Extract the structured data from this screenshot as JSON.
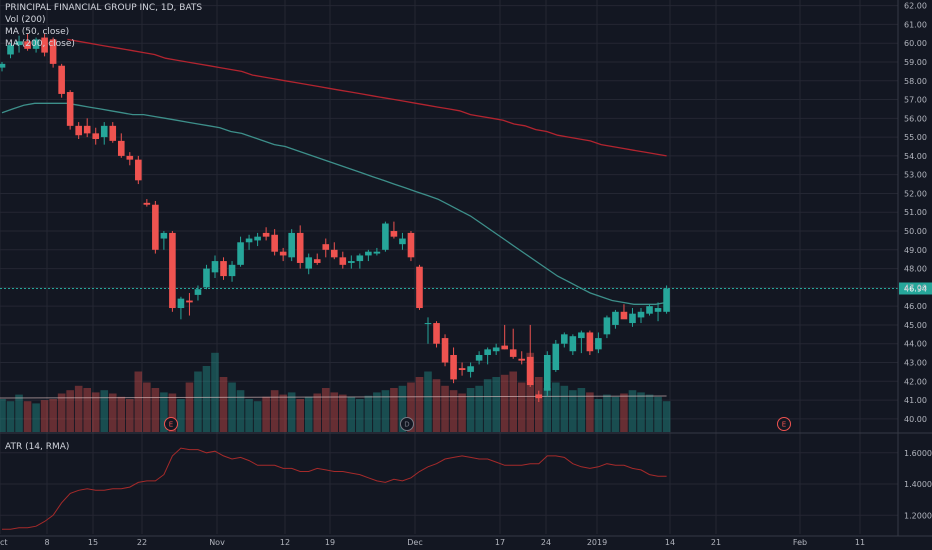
{
  "legend": {
    "title": "PRINCIPAL FINANCIAL GROUP INC, 1D, BATS",
    "vol": "Vol (200)",
    "ma50": "MA (50, close)",
    "ma200": "MA (200, close)",
    "atr": "ATR (14, RMA)"
  },
  "colors": {
    "up": "#26a69a",
    "down": "#ef5350",
    "ma50": "#3d8f8a",
    "ma200": "#b2242f",
    "atr": "#a52a2a",
    "last_price_line": "#26a69a",
    "grid": "#242733",
    "background": "#131722"
  },
  "chart_data": {
    "type": "candlestick",
    "title": "PRINCIPAL FINANCIAL GROUP INC, 1D, BATS",
    "price_axis": {
      "ylim": [
        39.3,
        62.3
      ],
      "ticks": [
        "62.00",
        "61.00",
        "60.00",
        "59.00",
        "58.00",
        "57.00",
        "56.00",
        "55.00",
        "54.00",
        "53.00",
        "52.00",
        "51.00",
        "50.00",
        "49.00",
        "48.00",
        "47.00",
        "46.00",
        "45.00",
        "44.00",
        "43.00",
        "42.00",
        "41.00",
        "40.00"
      ]
    },
    "last_price": "46.94",
    "x_tick_labels": [
      "ct",
      "8",
      "15",
      "22",
      "Nov",
      "12",
      "19",
      "Dec",
      "17",
      "24",
      "2019",
      "14",
      "21",
      "Feb",
      "11"
    ],
    "candles": [
      {
        "o": 58.7,
        "h": 59.0,
        "l": 58.5,
        "c": 58.9
      },
      {
        "o": 59.4,
        "h": 60.0,
        "l": 59.2,
        "c": 59.9
      },
      {
        "o": 59.9,
        "h": 60.4,
        "l": 59.5,
        "c": 60.1
      },
      {
        "o": 60.1,
        "h": 60.5,
        "l": 59.6,
        "c": 59.7
      },
      {
        "o": 59.7,
        "h": 60.3,
        "l": 59.5,
        "c": 60.2
      },
      {
        "o": 60.3,
        "h": 60.5,
        "l": 59.3,
        "c": 59.5
      },
      {
        "o": 60.2,
        "h": 60.3,
        "l": 58.7,
        "c": 58.9
      },
      {
        "o": 58.8,
        "h": 58.9,
        "l": 57.1,
        "c": 57.3
      },
      {
        "o": 57.4,
        "h": 57.5,
        "l": 55.4,
        "c": 55.6
      },
      {
        "o": 55.6,
        "h": 55.8,
        "l": 54.9,
        "c": 55.1
      },
      {
        "o": 55.6,
        "h": 56.0,
        "l": 55.0,
        "c": 55.2
      },
      {
        "o": 55.2,
        "h": 55.5,
        "l": 54.6,
        "c": 54.9
      },
      {
        "o": 55.0,
        "h": 55.8,
        "l": 54.6,
        "c": 55.6
      },
      {
        "o": 55.6,
        "h": 55.8,
        "l": 54.7,
        "c": 54.8
      },
      {
        "o": 54.8,
        "h": 55.2,
        "l": 53.9,
        "c": 54.0
      },
      {
        "o": 54.0,
        "h": 54.2,
        "l": 53.5,
        "c": 53.8
      },
      {
        "o": 53.8,
        "h": 54.0,
        "l": 52.5,
        "c": 52.7
      },
      {
        "o": 51.5,
        "h": 51.7,
        "l": 51.3,
        "c": 51.4
      },
      {
        "o": 51.4,
        "h": 51.6,
        "l": 48.8,
        "c": 49.0
      },
      {
        "o": 49.6,
        "h": 50.0,
        "l": 49.0,
        "c": 49.9
      },
      {
        "o": 49.9,
        "h": 50.0,
        "l": 45.7,
        "c": 45.9
      },
      {
        "o": 45.9,
        "h": 46.5,
        "l": 45.3,
        "c": 46.4
      },
      {
        "o": 46.3,
        "h": 46.7,
        "l": 45.5,
        "c": 46.2
      },
      {
        "o": 46.6,
        "h": 47.1,
        "l": 46.3,
        "c": 46.9
      },
      {
        "o": 47.0,
        "h": 48.2,
        "l": 46.9,
        "c": 48.0
      },
      {
        "o": 47.8,
        "h": 48.7,
        "l": 47.5,
        "c": 48.4
      },
      {
        "o": 48.4,
        "h": 48.6,
        "l": 47.4,
        "c": 47.6
      },
      {
        "o": 47.6,
        "h": 48.4,
        "l": 47.3,
        "c": 48.2
      },
      {
        "o": 48.2,
        "h": 49.7,
        "l": 48.1,
        "c": 49.4
      },
      {
        "o": 49.4,
        "h": 49.8,
        "l": 49.0,
        "c": 49.6
      },
      {
        "o": 49.5,
        "h": 49.9,
        "l": 49.2,
        "c": 49.7
      },
      {
        "o": 49.9,
        "h": 50.2,
        "l": 49.5,
        "c": 49.7
      },
      {
        "o": 49.8,
        "h": 50.1,
        "l": 48.7,
        "c": 48.9
      },
      {
        "o": 48.9,
        "h": 49.1,
        "l": 48.4,
        "c": 48.7
      },
      {
        "o": 48.6,
        "h": 50.1,
        "l": 48.4,
        "c": 49.9
      },
      {
        "o": 49.9,
        "h": 50.3,
        "l": 48.0,
        "c": 48.3
      },
      {
        "o": 48.0,
        "h": 48.8,
        "l": 47.7,
        "c": 48.6
      },
      {
        "o": 48.5,
        "h": 48.8,
        "l": 48.2,
        "c": 48.3
      },
      {
        "o": 49.3,
        "h": 49.6,
        "l": 48.6,
        "c": 49.0
      },
      {
        "o": 49.0,
        "h": 49.4,
        "l": 48.5,
        "c": 48.6
      },
      {
        "o": 48.6,
        "h": 48.9,
        "l": 48.0,
        "c": 48.2
      },
      {
        "o": 48.3,
        "h": 48.7,
        "l": 48.0,
        "c": 48.4
      },
      {
        "o": 48.4,
        "h": 48.8,
        "l": 48.0,
        "c": 48.7
      },
      {
        "o": 48.7,
        "h": 49.0,
        "l": 48.4,
        "c": 48.9
      },
      {
        "o": 48.8,
        "h": 49.1,
        "l": 48.7,
        "c": 48.9
      },
      {
        "o": 49.0,
        "h": 50.5,
        "l": 48.9,
        "c": 50.4
      },
      {
        "o": 50.0,
        "h": 50.5,
        "l": 49.6,
        "c": 49.7
      },
      {
        "o": 49.3,
        "h": 49.9,
        "l": 49.0,
        "c": 49.6
      },
      {
        "o": 49.9,
        "h": 50.0,
        "l": 48.4,
        "c": 48.6
      },
      {
        "o": 48.1,
        "h": 48.2,
        "l": 45.8,
        "c": 45.9
      },
      {
        "o": 45.1,
        "h": 45.4,
        "l": 44.0,
        "c": 45.1
      },
      {
        "o": 45.1,
        "h": 45.2,
        "l": 43.8,
        "c": 44.0
      },
      {
        "o": 44.3,
        "h": 44.5,
        "l": 42.8,
        "c": 43.0
      },
      {
        "o": 43.4,
        "h": 43.8,
        "l": 41.9,
        "c": 42.1
      },
      {
        "o": 42.7,
        "h": 43.0,
        "l": 42.3,
        "c": 42.6
      },
      {
        "o": 42.5,
        "h": 43.0,
        "l": 42.2,
        "c": 42.8
      },
      {
        "o": 43.1,
        "h": 43.6,
        "l": 42.9,
        "c": 43.4
      },
      {
        "o": 43.4,
        "h": 43.8,
        "l": 42.9,
        "c": 43.7
      },
      {
        "o": 43.6,
        "h": 44.0,
        "l": 43.4,
        "c": 43.8
      },
      {
        "o": 43.9,
        "h": 45.0,
        "l": 43.7,
        "c": 43.7
      },
      {
        "o": 43.7,
        "h": 44.8,
        "l": 43.2,
        "c": 43.3
      },
      {
        "o": 43.2,
        "h": 43.6,
        "l": 42.9,
        "c": 43.1
      },
      {
        "o": 43.3,
        "h": 45.0,
        "l": 41.7,
        "c": 41.8
      },
      {
        "o": 41.3,
        "h": 41.5,
        "l": 40.9,
        "c": 41.1
      },
      {
        "o": 41.5,
        "h": 43.6,
        "l": 41.2,
        "c": 43.4
      },
      {
        "o": 42.6,
        "h": 44.2,
        "l": 42.5,
        "c": 44.0
      },
      {
        "o": 44.0,
        "h": 44.6,
        "l": 43.8,
        "c": 44.5
      },
      {
        "o": 43.6,
        "h": 44.5,
        "l": 43.4,
        "c": 44.4
      },
      {
        "o": 44.3,
        "h": 44.7,
        "l": 43.5,
        "c": 44.6
      },
      {
        "o": 44.6,
        "h": 44.7,
        "l": 43.4,
        "c": 43.6
      },
      {
        "o": 43.7,
        "h": 44.6,
        "l": 43.5,
        "c": 44.3
      },
      {
        "o": 44.5,
        "h": 45.5,
        "l": 44.3,
        "c": 45.4
      },
      {
        "o": 45.0,
        "h": 45.8,
        "l": 44.8,
        "c": 45.7
      },
      {
        "o": 45.7,
        "h": 46.1,
        "l": 45.4,
        "c": 45.3
      },
      {
        "o": 45.1,
        "h": 45.9,
        "l": 44.9,
        "c": 45.6
      },
      {
        "o": 45.4,
        "h": 45.9,
        "l": 45.1,
        "c": 45.7
      },
      {
        "o": 45.6,
        "h": 46.1,
        "l": 45.5,
        "c": 46.0
      },
      {
        "o": 45.7,
        "h": 46.2,
        "l": 45.2,
        "c": 45.9
      },
      {
        "o": 45.7,
        "h": 47.1,
        "l": 45.6,
        "c": 46.94
      }
    ],
    "volume": [
      0.3,
      0.28,
      0.34,
      0.28,
      0.26,
      0.29,
      0.3,
      0.35,
      0.38,
      0.42,
      0.4,
      0.36,
      0.38,
      0.35,
      0.32,
      0.3,
      0.55,
      0.45,
      0.4,
      0.36,
      0.35,
      0.3,
      0.45,
      0.55,
      0.6,
      0.72,
      0.5,
      0.45,
      0.38,
      0.3,
      0.28,
      0.32,
      0.38,
      0.34,
      0.36,
      0.3,
      0.32,
      0.35,
      0.4,
      0.36,
      0.34,
      0.32,
      0.3,
      0.33,
      0.36,
      0.38,
      0.4,
      0.42,
      0.45,
      0.5,
      0.55,
      0.48,
      0.42,
      0.38,
      0.35,
      0.4,
      0.42,
      0.48,
      0.5,
      0.52,
      0.55,
      0.45,
      0.72,
      0.5,
      0.4,
      0.45,
      0.42,
      0.38,
      0.4,
      0.36,
      0.3,
      0.34,
      0.32,
      0.35,
      0.38,
      0.36,
      0.34,
      0.32,
      0.28
    ],
    "ma50": [
      56.3,
      56.5,
      56.7,
      56.8,
      56.8,
      56.8,
      56.8,
      56.7,
      56.6,
      56.5,
      56.4,
      56.3,
      56.2,
      56.2,
      56.1,
      56.0,
      55.9,
      55.8,
      55.7,
      55.6,
      55.5,
      55.3,
      55.2,
      55.0,
      54.8,
      54.6,
      54.5,
      54.3,
      54.1,
      53.9,
      53.7,
      53.5,
      53.3,
      53.1,
      52.9,
      52.7,
      52.5,
      52.3,
      52.1,
      51.9,
      51.7,
      51.4,
      51.1,
      50.8,
      50.4,
      50.0,
      49.6,
      49.2,
      48.8,
      48.4,
      48.0,
      47.6,
      47.3,
      47.0,
      46.7,
      46.5,
      46.3,
      46.2,
      46.1,
      46.1,
      46.1,
      46.2
    ],
    "ma50_start": 0,
    "ma200": [
      60.2,
      60.1,
      60.0,
      59.9,
      59.8,
      59.7,
      59.6,
      59.5,
      59.4,
      59.2,
      59.1,
      59.0,
      58.9,
      58.8,
      58.7,
      58.6,
      58.5,
      58.3,
      58.2,
      58.1,
      58.0,
      57.9,
      57.8,
      57.7,
      57.6,
      57.5,
      57.4,
      57.3,
      57.2,
      57.1,
      57.0,
      56.9,
      56.8,
      56.7,
      56.6,
      56.5,
      56.4,
      56.2,
      56.1,
      56.0,
      55.9,
      55.7,
      55.6,
      55.4,
      55.3,
      55.1,
      55.0,
      54.9,
      54.8,
      54.6,
      54.5,
      54.4,
      54.3,
      54.2,
      54.1,
      54.0
    ],
    "ma200_start": 6,
    "atr": {
      "ticks": [
        "1.6000",
        "1.4000",
        "1.2000"
      ],
      "ylim": [
        1.08,
        1.72
      ],
      "values": [
        1.11,
        1.11,
        1.12,
        1.12,
        1.13,
        1.16,
        1.2,
        1.28,
        1.34,
        1.36,
        1.37,
        1.36,
        1.36,
        1.37,
        1.37,
        1.38,
        1.41,
        1.42,
        1.42,
        1.46,
        1.58,
        1.63,
        1.62,
        1.62,
        1.6,
        1.61,
        1.58,
        1.56,
        1.57,
        1.55,
        1.52,
        1.52,
        1.52,
        1.5,
        1.5,
        1.48,
        1.48,
        1.5,
        1.49,
        1.48,
        1.48,
        1.47,
        1.46,
        1.44,
        1.42,
        1.41,
        1.43,
        1.42,
        1.44,
        1.48,
        1.51,
        1.53,
        1.56,
        1.57,
        1.58,
        1.57,
        1.56,
        1.56,
        1.54,
        1.52,
        1.52,
        1.52,
        1.53,
        1.53,
        1.58,
        1.58,
        1.57,
        1.53,
        1.51,
        1.5,
        1.51,
        1.53,
        1.52,
        1.52,
        1.5,
        1.49,
        1.46,
        1.45,
        1.45
      ]
    },
    "events": [
      {
        "label": "E",
        "index": 23,
        "color": "#ef5350"
      },
      {
        "label": "D",
        "index": 54,
        "color": "#787b86"
      },
      {
        "label": "E",
        "index": 106,
        "color": "#ef5350"
      }
    ]
  }
}
